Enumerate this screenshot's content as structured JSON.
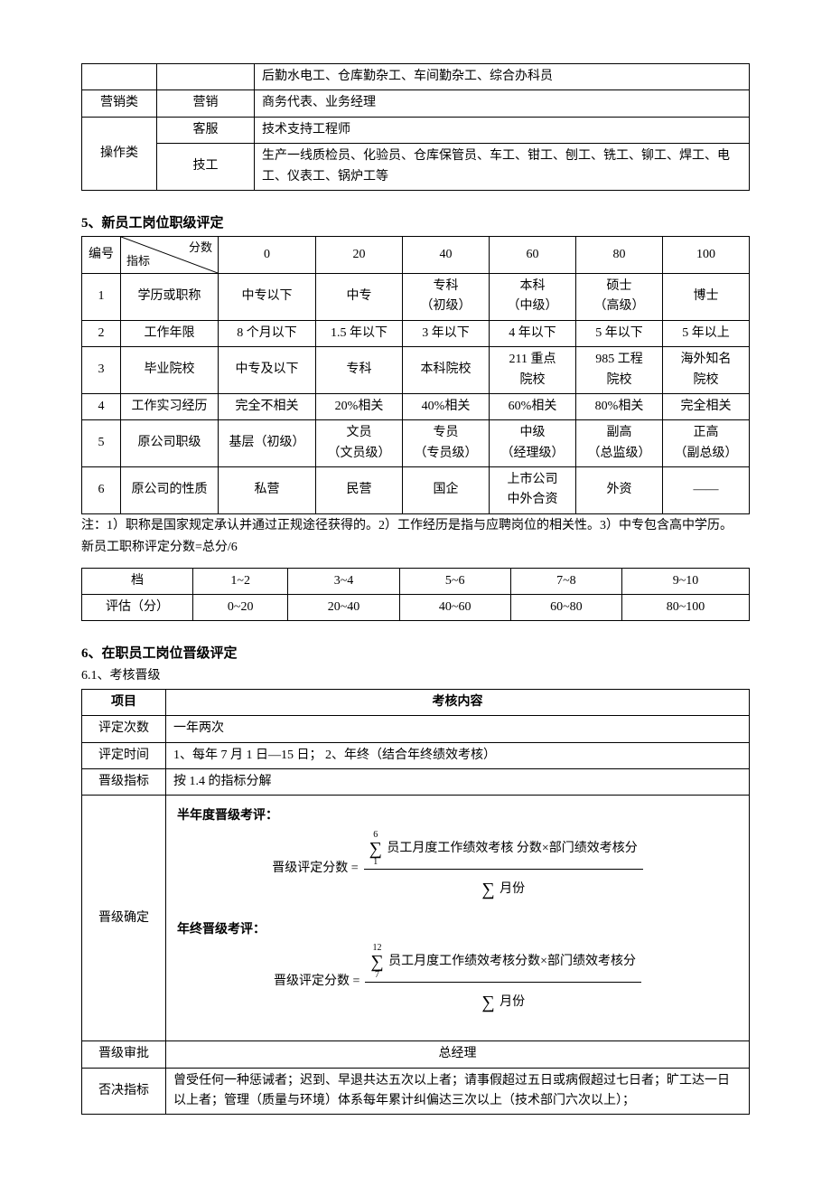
{
  "table1": {
    "rows": [
      {
        "cat": "",
        "sub": "",
        "detail": "后勤水电工、仓库勤杂工、车间勤杂工、综合办科员"
      },
      {
        "cat": "营销类",
        "sub": "营销",
        "detail": "商务代表、业务经理"
      },
      {
        "cat": "操作类",
        "sub1": "客服",
        "detail1": "技术支持工程师",
        "sub2": "技工",
        "detail2": "生产一线质检员、化验员、仓库保管员、车工、钳工、刨工、铣工、铆工、焊工、电工、仪表工、锅炉工等"
      }
    ]
  },
  "section5": {
    "title": "5、新员工岗位职级评定",
    "diag_top": "分数",
    "diag_bottom": "指标",
    "header_no": "编号",
    "scores": [
      "0",
      "20",
      "40",
      "60",
      "80",
      "100"
    ],
    "rows": [
      {
        "no": "1",
        "label": "学历或职称",
        "cells": [
          "中专以下",
          "中专",
          "专科\n（初级）",
          "本科\n（中级）",
          "硕士\n（高级）",
          "博士"
        ]
      },
      {
        "no": "2",
        "label": "工作年限",
        "cells": [
          "8 个月以下",
          "1.5 年以下",
          "3 年以下",
          "4 年以下",
          "5 年以下",
          "5 年以上"
        ]
      },
      {
        "no": "3",
        "label": "毕业院校",
        "cells": [
          "中专及以下",
          "专科",
          "本科院校",
          "211 重点\n院校",
          "985 工程\n院校",
          "海外知名\n院校"
        ]
      },
      {
        "no": "4",
        "label": "工作实习经历",
        "cells": [
          "完全不相关",
          "20%相关",
          "40%相关",
          "60%相关",
          "80%相关",
          "完全相关"
        ]
      },
      {
        "no": "5",
        "label": "原公司职级",
        "cells": [
          "基层（初级）",
          "文员\n（文员级）",
          "专员\n（专员级）",
          "中级\n（经理级）",
          "副高\n（总监级）",
          "正高\n（副总级）"
        ]
      },
      {
        "no": "6",
        "label": "原公司的性质",
        "cells": [
          "私营",
          "民营",
          "国企",
          "上市公司\n中外合资",
          "外资",
          "——"
        ]
      }
    ],
    "note1": "注：1）职称是国家规定承认并通过正规途径获得的。2）工作经历是指与应聘岗位的相关性。3）中专包含高中学历。",
    "note2": "新员工职称评定分数=总分/6",
    "grade_table": {
      "col1": "档",
      "col1_row2": "评估（分）",
      "cols": [
        "1~2",
        "3~4",
        "5~6",
        "7~8",
        "9~10"
      ],
      "vals": [
        "0~20",
        "20~40",
        "40~60",
        "60~80",
        "80~100"
      ]
    }
  },
  "section6": {
    "title": "6、在职员工岗位晋级评定",
    "sub": "6.1、考核晋级",
    "header_item": "项目",
    "header_content": "考核内容",
    "rows": {
      "r1_label": "评定次数",
      "r1_val": "一年两次",
      "r2_label": "评定时间",
      "r2_val": "1、每年 7 月 1 日—15 日；   2、年终（结合年终绩效考核）",
      "r3_label": "晋级指标",
      "r3_val": "按 1.4 的指标分解",
      "r4_label": "晋级确定",
      "half_title": "半年度晋级考评：",
      "year_title": "年终晋级考评：",
      "lhs": "晋级评定分数  =",
      "sum_upper1": "6",
      "sum_lower1": "1",
      "sum_upper2": "12",
      "sum_lower2": "7",
      "num1": "员工月度工作绩效考核 分数×部门绩效考核分",
      "num2": "员工月度工作绩效考核分数×部门绩效考核分",
      "den": "月份",
      "r5_label": "晋级审批",
      "r5_val": "总经理",
      "r6_label": "否决指标",
      "r6_val": "曾受任何一种惩诫者；迟到、早退共达五次以上者；请事假超过五日或病假超过七日者；旷工达一日以上者；管理（质量与环境）体系每年累计纠偏达三次以上（技术部门六次以上）；"
    }
  }
}
